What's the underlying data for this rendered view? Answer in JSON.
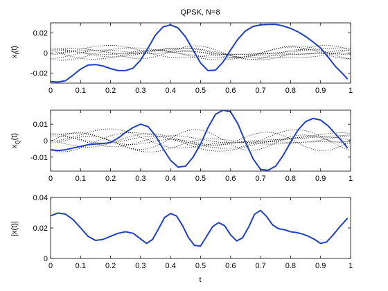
{
  "chart_data": [
    {
      "type": "line",
      "title": "QPSK, N=8",
      "ylabel": "x",
      "ylabel_sub": "I",
      "ylabel_suffix": "(t)",
      "xlabel": "",
      "xlim": [
        0,
        1
      ],
      "ylim": [
        -0.03,
        0.03
      ],
      "xticks": [
        0,
        0.1,
        0.2,
        0.3,
        0.4,
        0.5,
        0.6,
        0.7,
        0.8,
        0.9,
        1
      ],
      "xtick_labels": [
        "0",
        "0.1",
        "0.2",
        "0.3",
        "0.4",
        "0.5",
        "0.6",
        "0.7",
        "0.8",
        "0.9",
        "1"
      ],
      "yticks": [
        -0.02,
        0,
        0.02
      ],
      "ytick_labels": [
        "-0.02",
        "0",
        "0.02"
      ],
      "grid": false,
      "series_color": "#1f3fbf",
      "dotted_color": "#000000",
      "x": [
        0,
        0.025,
        0.05,
        0.075,
        0.1,
        0.125,
        0.15,
        0.175,
        0.2,
        0.225,
        0.25,
        0.275,
        0.3,
        0.325,
        0.35,
        0.375,
        0.4,
        0.425,
        0.45,
        0.475,
        0.5,
        0.525,
        0.55,
        0.575,
        0.6,
        0.625,
        0.65,
        0.675,
        0.7,
        0.725,
        0.75,
        0.775,
        0.8,
        0.825,
        0.85,
        0.875,
        0.9,
        0.925,
        0.95,
        0.975,
        0.99
      ],
      "series": [
        {
          "values": [
            -0.0285,
            -0.029,
            -0.0275,
            -0.022,
            -0.016,
            -0.012,
            -0.0115,
            -0.013,
            -0.0155,
            -0.0175,
            -0.0175,
            -0.015,
            -0.007,
            0.005,
            0.018,
            0.026,
            0.028,
            0.025,
            0.016,
            0.003,
            -0.01,
            -0.0175,
            -0.017,
            -0.009,
            0.003,
            0.014,
            0.022,
            0.0265,
            0.028,
            0.0285,
            0.0285,
            0.027,
            0.0245,
            0.021,
            0.0165,
            0.011,
            0.005,
            -0.004,
            -0.0135,
            -0.021,
            -0.026
          ]
        }
      ]
    },
    {
      "type": "line",
      "title": "",
      "ylabel": "x",
      "ylabel_sub": "Q",
      "ylabel_suffix": "(t)",
      "xlabel": "",
      "xlim": [
        0,
        1
      ],
      "ylim": [
        -0.0185,
        0.0185
      ],
      "xticks": [
        0,
        0.1,
        0.2,
        0.3,
        0.4,
        0.5,
        0.6,
        0.7,
        0.8,
        0.9,
        1
      ],
      "xtick_labels": [
        "0",
        "0.1",
        "0.2",
        "0.3",
        "0.4",
        "0.5",
        "0.6",
        "0.7",
        "0.8",
        "0.9",
        "1"
      ],
      "yticks": [
        -0.01,
        0,
        0.01
      ],
      "ytick_labels": [
        "-0.01",
        "0",
        "0.01"
      ],
      "grid": false,
      "series_color": "#1f3fbf",
      "dotted_color": "#000000",
      "x": [
        0,
        0.025,
        0.05,
        0.075,
        0.1,
        0.125,
        0.15,
        0.175,
        0.2,
        0.225,
        0.25,
        0.275,
        0.3,
        0.325,
        0.35,
        0.375,
        0.4,
        0.425,
        0.45,
        0.475,
        0.5,
        0.525,
        0.55,
        0.575,
        0.6,
        0.625,
        0.65,
        0.675,
        0.7,
        0.725,
        0.75,
        0.775,
        0.8,
        0.825,
        0.85,
        0.875,
        0.9,
        0.925,
        0.95,
        0.975,
        0.99
      ],
      "series": [
        {
          "values": [
            -0.0055,
            -0.006,
            -0.0055,
            -0.0045,
            -0.0035,
            -0.0025,
            -0.002,
            -0.0018,
            -0.001,
            0.0015,
            0.005,
            0.008,
            0.01,
            0.0085,
            0.003,
            -0.005,
            -0.012,
            -0.016,
            -0.0155,
            -0.01,
            -0.002,
            0.008,
            0.016,
            0.0185,
            0.0175,
            0.01,
            -0.001,
            -0.011,
            -0.0175,
            -0.018,
            -0.0155,
            -0.009,
            -0.001,
            0.0065,
            0.0115,
            0.0135,
            0.0125,
            0.009,
            0.004,
            -0.001,
            -0.0045
          ]
        }
      ]
    },
    {
      "type": "line",
      "title": "",
      "ylabel": "|x(t)|",
      "xlabel": "t",
      "xlim": [
        0,
        1
      ],
      "ylim": [
        0,
        0.04
      ],
      "xticks": [
        0,
        0.1,
        0.2,
        0.3,
        0.4,
        0.5,
        0.6,
        0.7,
        0.8,
        0.9,
        1
      ],
      "xtick_labels": [
        "0",
        "0.1",
        "0.2",
        "0.3",
        "0.4",
        "0.5",
        "0.6",
        "0.7",
        "0.8",
        "0.9",
        "1"
      ],
      "yticks": [
        0,
        0.02,
        0.04
      ],
      "ytick_labels": [
        "0",
        "0.02",
        "0.04"
      ],
      "grid": false,
      "series_color": "#1f3fbf",
      "x": [
        0,
        0.025,
        0.05,
        0.075,
        0.1,
        0.125,
        0.15,
        0.175,
        0.2,
        0.225,
        0.25,
        0.275,
        0.3,
        0.32,
        0.34,
        0.36,
        0.38,
        0.4,
        0.42,
        0.44,
        0.46,
        0.48,
        0.5,
        0.52,
        0.54,
        0.56,
        0.58,
        0.6,
        0.62,
        0.64,
        0.66,
        0.68,
        0.7,
        0.72,
        0.74,
        0.76,
        0.78,
        0.8,
        0.82,
        0.84,
        0.86,
        0.88,
        0.9,
        0.92,
        0.94,
        0.96,
        0.99
      ],
      "series": [
        {
          "values": [
            0.028,
            0.0298,
            0.029,
            0.0255,
            0.02,
            0.0145,
            0.0118,
            0.0125,
            0.0145,
            0.0165,
            0.0175,
            0.0165,
            0.0128,
            0.0098,
            0.0125,
            0.0195,
            0.0268,
            0.0295,
            0.0278,
            0.0215,
            0.0135,
            0.0085,
            0.0082,
            0.0145,
            0.0208,
            0.0235,
            0.0215,
            0.0155,
            0.0115,
            0.0135,
            0.0205,
            0.029,
            0.0315,
            0.0275,
            0.022,
            0.0195,
            0.0188,
            0.0175,
            0.017,
            0.016,
            0.0145,
            0.0125,
            0.0098,
            0.0108,
            0.015,
            0.0198,
            0.0265
          ]
        }
      ]
    }
  ]
}
